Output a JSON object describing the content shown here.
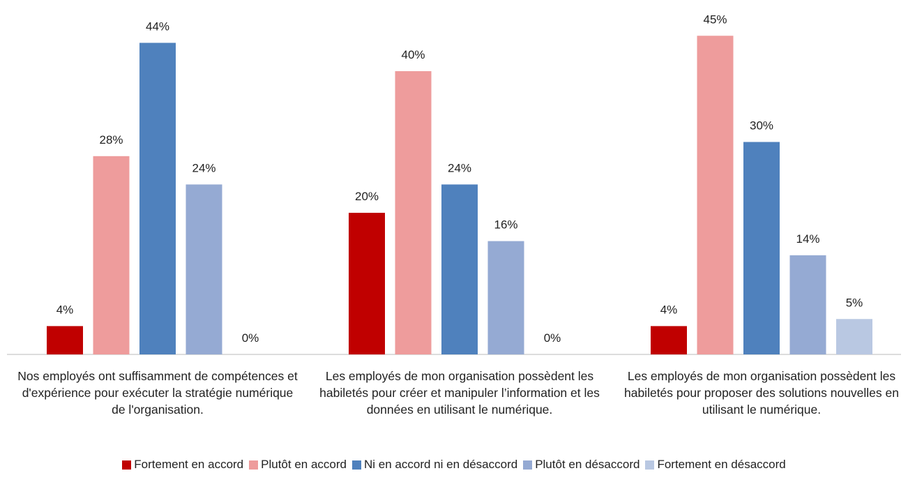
{
  "chart_data": {
    "type": "bar",
    "categories": [
      "Nos employés ont suffisamment de compétences et d'expérience pour exécuter la stratégie numérique de l'organisation.",
      "Les employés de mon organisation possèdent les habiletés pour créer et manipuler l’information et les données en utilisant le numérique.",
      "Les employés de mon organisation possèdent les habiletés pour proposer des solutions nouvelles en utilisant le numérique."
    ],
    "series": [
      {
        "name": "Fortement en accord",
        "color": "#c00000",
        "values": [
          4,
          20,
          4
        ],
        "value_labels": [
          "4%",
          "20%",
          "4%"
        ]
      },
      {
        "name": "Plutôt en accord",
        "color": "#ee9c9c",
        "values": [
          28,
          40,
          45
        ],
        "value_labels": [
          "28%",
          "40%",
          "45%"
        ]
      },
      {
        "name": "Ni en accord ni en désaccord",
        "color": "#4f81bd",
        "values": [
          44,
          24,
          30
        ],
        "value_labels": [
          "44%",
          "24%",
          "30%"
        ]
      },
      {
        "name": "Plutôt en désaccord",
        "color": "#95aad3",
        "values": [
          24,
          16,
          14
        ],
        "value_labels": [
          "24%",
          "16%",
          "14%"
        ]
      },
      {
        "name": "Fortement en désaccord",
        "color": "#b9c8e2",
        "values": [
          0,
          0,
          5
        ],
        "value_labels": [
          "0%",
          "0%",
          "5%"
        ]
      }
    ],
    "legend": "bottom"
  }
}
